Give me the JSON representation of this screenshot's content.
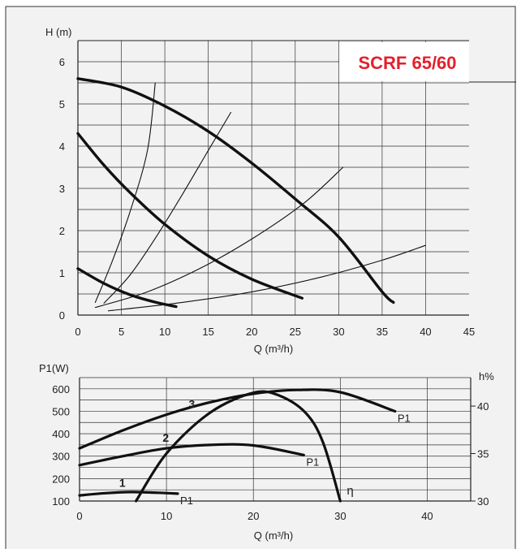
{
  "colors": {
    "title": "#e3202d",
    "background": "#f2f2f2",
    "curve": "#111111",
    "grid": "#333333"
  },
  "chart_data": [
    {
      "type": "line",
      "title": "SCRF 65/60",
      "xlabel": "Q (m³/h)",
      "ylabel": "H (m)",
      "xlim": [
        0,
        45
      ],
      "ylim": [
        0,
        6.5
      ],
      "x_ticks": [
        0,
        5,
        10,
        15,
        20,
        25,
        30,
        35,
        40,
        45
      ],
      "y_ticks": [
        0,
        1,
        2,
        3,
        4,
        5,
        6
      ],
      "grid": true,
      "series": [
        {
          "kind": "pump",
          "points": [
            [
              0,
              5.6
            ],
            [
              5,
              5.4
            ],
            [
              10,
              4.95
            ],
            [
              15,
              4.35
            ],
            [
              20,
              3.6
            ],
            [
              25,
              2.75
            ],
            [
              30,
              1.85
            ],
            [
              35,
              0.55
            ],
            [
              36.3,
              0.3
            ]
          ]
        },
        {
          "kind": "pump",
          "points": [
            [
              0,
              4.3
            ],
            [
              3,
              3.55
            ],
            [
              6,
              2.9
            ],
            [
              10,
              2.15
            ],
            [
              15,
              1.4
            ],
            [
              20,
              0.85
            ],
            [
              25.8,
              0.4
            ]
          ]
        },
        {
          "kind": "pump",
          "points": [
            [
              0,
              1.1
            ],
            [
              3,
              0.75
            ],
            [
              6,
              0.48
            ],
            [
              9,
              0.3
            ],
            [
              11.3,
              0.2
            ]
          ]
        },
        {
          "kind": "system",
          "points": [
            [
              2,
              0.3
            ],
            [
              4,
              1.3
            ],
            [
              6,
              2.45
            ],
            [
              8,
              3.9
            ],
            [
              8.9,
              5.5
            ]
          ]
        },
        {
          "kind": "system",
          "points": [
            [
              3,
              0.28
            ],
            [
              6,
              0.95
            ],
            [
              9,
              1.85
            ],
            [
              12,
              2.85
            ],
            [
              15,
              3.9
            ],
            [
              17.6,
              4.8
            ]
          ]
        },
        {
          "kind": "system",
          "points": [
            [
              2,
              0.18
            ],
            [
              8,
              0.55
            ],
            [
              14,
              1.1
            ],
            [
              20,
              1.8
            ],
            [
              26,
              2.65
            ],
            [
              30.5,
              3.5
            ]
          ]
        },
        {
          "kind": "system",
          "points": [
            [
              3.5,
              0.1
            ],
            [
              12,
              0.3
            ],
            [
              20,
              0.55
            ],
            [
              28,
              0.9
            ],
            [
              35,
              1.3
            ],
            [
              40,
              1.65
            ]
          ]
        }
      ]
    },
    {
      "type": "line",
      "xlabel": "Q (m³/h)",
      "ylabel": "P1(W)",
      "y2label": "h%",
      "xlim": [
        0,
        45
      ],
      "ylim": [
        100,
        650
      ],
      "y2lim": [
        30,
        43
      ],
      "x_ticks": [
        0,
        10,
        20,
        30,
        40
      ],
      "y_ticks": [
        100,
        200,
        300,
        400,
        500,
        600
      ],
      "y2_ticks": [
        30,
        35,
        40
      ],
      "grid": true,
      "series": [
        {
          "name": "1",
          "end_label": "P1",
          "points": [
            [
              0,
              125
            ],
            [
              3,
              135
            ],
            [
              6,
              140
            ],
            [
              9,
              137
            ],
            [
              11.3,
              133
            ]
          ]
        },
        {
          "name": "2",
          "end_label": "P1",
          "points": [
            [
              0,
              260
            ],
            [
              5,
              300
            ],
            [
              10,
              335
            ],
            [
              15,
              350
            ],
            [
              20,
              348
            ],
            [
              25.8,
              305
            ]
          ]
        },
        {
          "name": "3",
          "end_label": "P1",
          "points": [
            [
              0,
              335
            ],
            [
              5,
              415
            ],
            [
              10,
              485
            ],
            [
              15,
              540
            ],
            [
              20,
              578
            ],
            [
              25,
              595
            ],
            [
              30,
              585
            ],
            [
              36.3,
              500
            ]
          ]
        },
        {
          "name": "η",
          "axis": "right",
          "points": [
            [
              6.5,
              30
            ],
            [
              10,
              35
            ],
            [
              15,
              39.3
            ],
            [
              20,
              41.4
            ],
            [
              23,
              41.1
            ],
            [
              26,
              39.3
            ],
            [
              28,
              36.2
            ],
            [
              30,
              30
            ]
          ]
        }
      ]
    }
  ]
}
